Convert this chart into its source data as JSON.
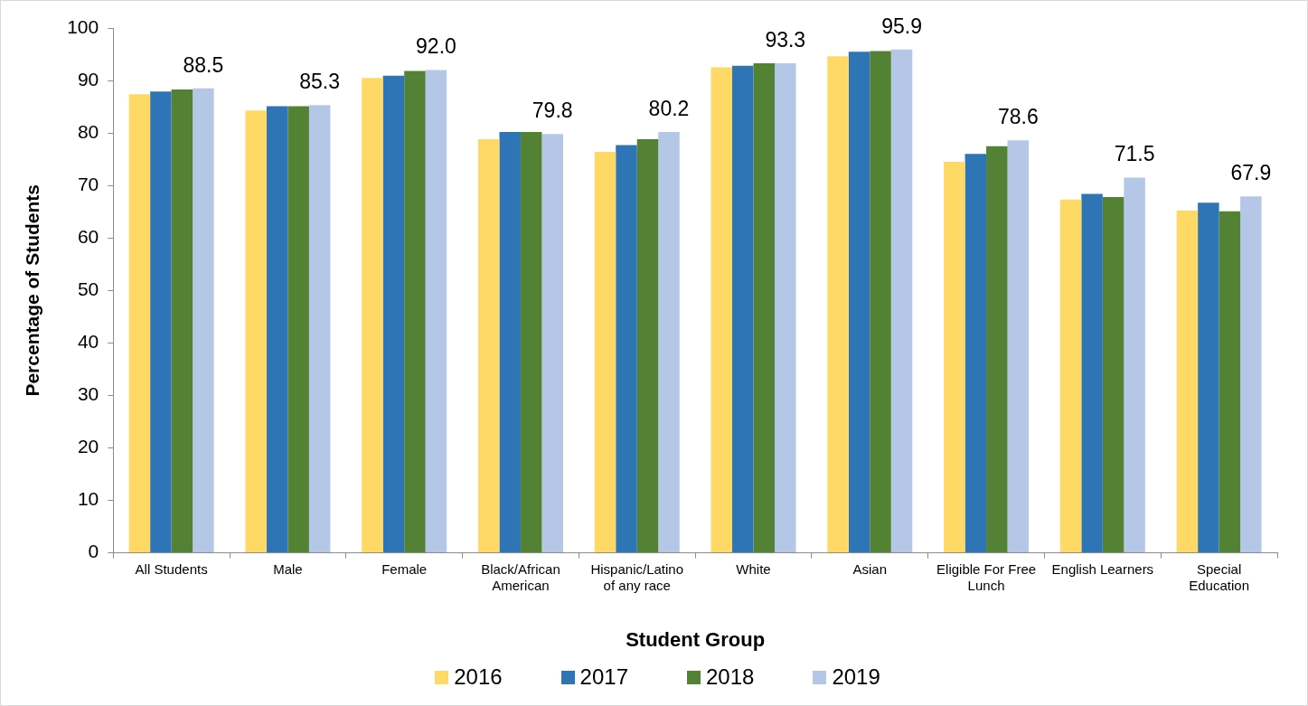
{
  "chart_data": {
    "type": "bar",
    "xlabel": "Student Group",
    "ylabel": "Percentage of Students",
    "categories": [
      "All Students",
      "Male",
      "Female",
      "Black/African American",
      "Hispanic/Latino of any race",
      "White",
      "Asian",
      "Eligible For Free Lunch",
      "English Learners",
      "Special Education"
    ],
    "series": [
      {
        "name": "2016",
        "color": "#ffd966",
        "values": [
          87.4,
          84.3,
          90.5,
          78.8,
          76.4,
          92.5,
          94.6,
          74.5,
          67.3,
          65.2
        ]
      },
      {
        "name": "2017",
        "color": "#2e75b6",
        "values": [
          87.9,
          85.1,
          90.9,
          80.2,
          77.7,
          92.8,
          95.5,
          76.0,
          68.4,
          66.7
        ]
      },
      {
        "name": "2018",
        "color": "#548235",
        "values": [
          88.3,
          85.1,
          91.8,
          80.2,
          78.8,
          93.3,
          95.6,
          77.5,
          67.8,
          65.1
        ]
      },
      {
        "name": "2019",
        "color": "#b4c7e7",
        "values": [
          88.5,
          85.3,
          92.0,
          79.8,
          80.2,
          93.3,
          95.9,
          78.6,
          71.5,
          67.9
        ],
        "value_labels": [
          "88.5",
          "85.3",
          "92.0",
          "79.8",
          "80.2",
          "93.3",
          "95.9",
          "78.6",
          "71.5",
          "67.9"
        ]
      }
    ],
    "ylim": [
      0,
      100
    ],
    "yticks": [
      0,
      10,
      20,
      30,
      40,
      50,
      60,
      70,
      80,
      90,
      100
    ],
    "legend": "bottom",
    "grid": false
  }
}
